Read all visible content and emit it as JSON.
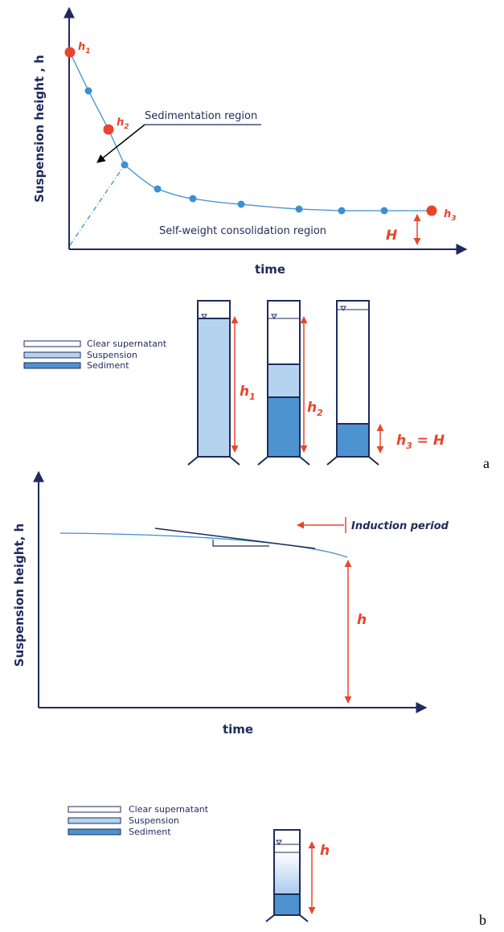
{
  "panel_a": {
    "y_axis_label": "Suspension height , h",
    "x_axis_label": "time",
    "point_labels": [
      {
        "base": "h",
        "sub": "1"
      },
      {
        "base": "h",
        "sub": "2"
      },
      {
        "base": "h",
        "sub": "3"
      }
    ],
    "sedimentation_region": "Sedimentation region",
    "consolidation_region": "Self-weight consolidation region",
    "H_label": "H",
    "legend": [
      "Clear supernatant",
      "Suspension",
      "Sediment"
    ],
    "cylinder_labels": [
      {
        "base": "h",
        "sub": "1",
        "rest": ""
      },
      {
        "base": "h",
        "sub": "2",
        "rest": ""
      },
      {
        "base": "h",
        "sub": "3",
        "rest": " = H"
      }
    ],
    "panel_letter": "a"
  },
  "panel_b": {
    "y_axis_label": "Suspension height, h",
    "x_axis_label": "time",
    "induction_period": "Induction period",
    "h_label": "h",
    "legend": [
      "Clear supernatant",
      "Suspension",
      "Sediment"
    ],
    "cylinder_label": "h",
    "panel_letter": "b"
  }
}
